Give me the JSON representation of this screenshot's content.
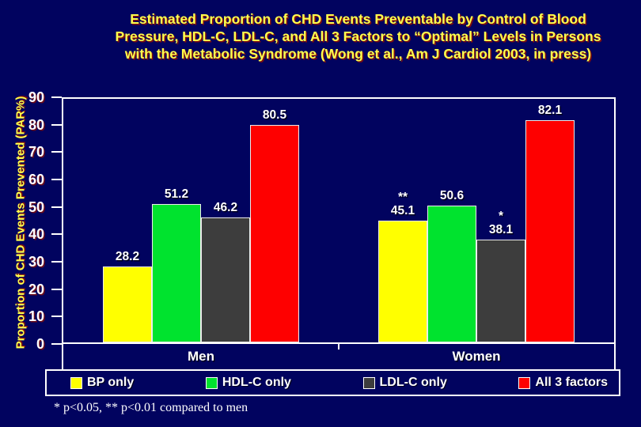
{
  "footnote": "* p<0.05, ** p<0.01 compared to men",
  "colors": {
    "background": "#01035f",
    "title_text": "#ffff4d",
    "title_shadow": "#7e0e0e",
    "axis_title_text": "#ffff4d",
    "tick_text": "#ffffff",
    "frame": "#ffffff",
    "label_text": "#ffffff"
  },
  "chart_data": {
    "type": "bar",
    "title": "Estimated Proportion of CHD Events Preventable by Control of Blood Pressure, HDL-C, LDL-C, and All 3 Factors to “Optimal” Levels in Persons with the Metabolic Syndrome (Wong et al., Am J Cardiol 2003, in press)",
    "ylabel": "Proportion of CHD Events Prevented (PAR%)",
    "xlabel": "",
    "ylim": [
      0,
      90
    ],
    "yticks": [
      0,
      10,
      20,
      30,
      40,
      50,
      60,
      70,
      80,
      90
    ],
    "grid": false,
    "legend_position": "bottom",
    "categories": [
      "Men",
      "Women"
    ],
    "series": [
      {
        "name": "BP only",
        "color": "#ffff00",
        "values": [
          28.2,
          45.1
        ],
        "annotations": [
          "",
          "**"
        ]
      },
      {
        "name": "HDL-C only",
        "color": "#00e32e",
        "values": [
          51.2,
          50.6
        ],
        "annotations": [
          "",
          ""
        ]
      },
      {
        "name": "LDL-C only",
        "color": "#3d3d3d",
        "values": [
          46.2,
          38.1
        ],
        "annotations": [
          "",
          "*"
        ]
      },
      {
        "name": "All 3 factors",
        "color": "#fe0000",
        "values": [
          80.5,
          82.1
        ],
        "annotations": [
          "",
          ""
        ]
      }
    ]
  }
}
